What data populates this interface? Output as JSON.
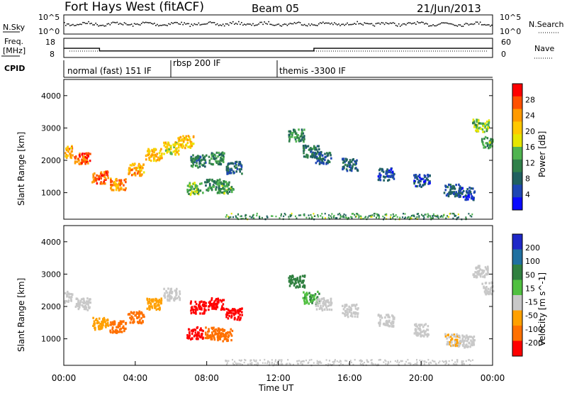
{
  "header": {
    "station": "Fort Hays West (fitACF)",
    "beam": "Beam 05",
    "date": "21/Jun/2013"
  },
  "noise_panel": {
    "left_label": "N.Sky",
    "right_label": "N.Search",
    "left_ticks": [
      "10^5",
      "10^0"
    ],
    "right_ticks": [
      "10^5",
      "10^0"
    ]
  },
  "freq_panel": {
    "left_label_line1": "Freq.",
    "left_label_line2": "[MHz]",
    "right_label": "Nave",
    "left_ticks": [
      "18",
      "8"
    ],
    "right_ticks": [
      "60",
      "0"
    ]
  },
  "cpid_panel": {
    "label": "CPID",
    "segments": [
      {
        "text": "normal (fast) 151 IF",
        "start_hour": 0.0
      },
      {
        "text": "rbsp 200 IF",
        "start_hour": 6.0
      },
      {
        "text": "themis -3300 IF",
        "start_hour": 12.0
      }
    ]
  },
  "power_panel": {
    "ylabel": "Slant Range [km]",
    "colorbar_label": "Power [dB]",
    "colorbar_ticks": [
      "28",
      "24",
      "20",
      "16",
      "12",
      "8",
      "4"
    ],
    "colorbar_colors": [
      "#ff0000",
      "#ff5000",
      "#ff9a00",
      "#ffc800",
      "#e6e600",
      "#50b450",
      "#30804a",
      "#206060",
      "#1e46b4",
      "#0a0aff"
    ]
  },
  "velocity_panel": {
    "ylabel": "Slant Range [km]",
    "colorbar_label": "Velocity [m s^-1]",
    "colorbar_ticks": [
      "200",
      "100",
      "50",
      "15",
      "-15",
      "-50",
      "-100",
      "-200"
    ],
    "colorbar_colors": [
      "#1e28c8",
      "#2070a0",
      "#308040",
      "#50c040",
      "#c8c8c8",
      "#ffa000",
      "#ff7000",
      "#ff0000"
    ]
  },
  "xaxis": {
    "label": "Time UT",
    "ticks": [
      "00:00",
      "04:00",
      "08:00",
      "12:00",
      "16:00",
      "20:00",
      "00:00"
    ]
  },
  "chart_data": {
    "type": "heatmap",
    "title": "Fort Hays West (fitACF)",
    "subtitle": "Beam 05",
    "xlabel": "Time UT",
    "ylabel": "Slant Range [km]",
    "xlim": [
      0,
      24
    ],
    "ylim": [
      180,
      4500
    ],
    "yticks": [
      1000,
      2000,
      3000,
      4000
    ],
    "freq_steps": [
      {
        "start_hour": 0.0,
        "end_hour": 2.0,
        "value": 12.8
      },
      {
        "start_hour": 2.0,
        "end_hour": 14.0,
        "value": 11.4
      },
      {
        "start_hour": 14.0,
        "end_hour": 24.0,
        "value": 12.8
      }
    ],
    "nave_level": 20,
    "power_features": [
      {
        "name": "morning-band",
        "points": [
          [
            0.0,
            2300,
            22
          ],
          [
            1.0,
            2100,
            26
          ],
          [
            2.0,
            1500,
            26
          ],
          [
            3.0,
            1300,
            24
          ],
          [
            4.0,
            1750,
            22
          ],
          [
            5.0,
            2200,
            20
          ],
          [
            6.0,
            2400,
            18
          ],
          [
            6.8,
            2600,
            20
          ]
        ]
      },
      {
        "name": "midday-patch",
        "points": [
          [
            7.5,
            2000,
            8
          ],
          [
            8.5,
            2100,
            10
          ],
          [
            9.5,
            1800,
            6
          ],
          [
            7.3,
            1150,
            14
          ],
          [
            8.3,
            1250,
            10
          ],
          [
            9.0,
            1200,
            12
          ]
        ]
      },
      {
        "name": "afternoon-streak",
        "points": [
          [
            13.0,
            2800,
            10
          ],
          [
            13.8,
            2300,
            8
          ],
          [
            14.5,
            2100,
            6
          ],
          [
            16.0,
            1900,
            6
          ],
          [
            18.0,
            1600,
            4
          ],
          [
            20.0,
            1400,
            4
          ]
        ]
      },
      {
        "name": "evening-band",
        "points": [
          [
            21.7,
            1100,
            6
          ],
          [
            22.5,
            1000,
            4
          ],
          [
            23.3,
            3100,
            14
          ],
          [
            23.8,
            2600,
            12
          ]
        ]
      }
    ],
    "velocity_features": [
      {
        "name": "morning-band",
        "points": [
          [
            0.0,
            2300,
            0
          ],
          [
            1.0,
            2100,
            0
          ],
          [
            2.0,
            1500,
            -20
          ],
          [
            3.0,
            1400,
            -50
          ],
          [
            4.0,
            1700,
            -40
          ],
          [
            5.0,
            2100,
            -20
          ],
          [
            6.0,
            2400,
            0
          ]
        ]
      },
      {
        "name": "midday-patch",
        "points": [
          [
            7.5,
            2000,
            -200
          ],
          [
            8.5,
            2100,
            -200
          ],
          [
            9.5,
            1800,
            -180
          ],
          [
            7.3,
            1200,
            -120
          ],
          [
            8.3,
            1200,
            -60
          ],
          [
            9.0,
            1150,
            -40
          ]
        ]
      },
      {
        "name": "afternoon-streak",
        "points": [
          [
            13.0,
            2800,
            50
          ],
          [
            13.8,
            2300,
            30
          ],
          [
            14.5,
            2100,
            0
          ],
          [
            16.0,
            1900,
            0
          ],
          [
            18.0,
            1600,
            0
          ],
          [
            20.0,
            1300,
            0
          ]
        ]
      },
      {
        "name": "evening-band",
        "points": [
          [
            21.7,
            1000,
            -15
          ],
          [
            22.5,
            950,
            0
          ],
          [
            23.3,
            3100,
            0
          ],
          [
            23.8,
            2600,
            0
          ]
        ]
      }
    ]
  }
}
